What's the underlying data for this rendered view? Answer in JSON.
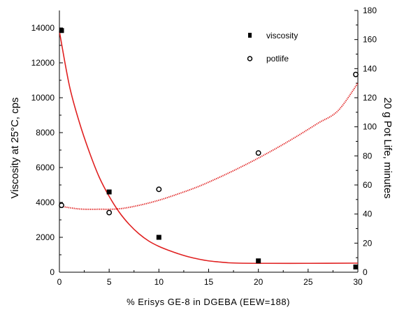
{
  "chart_data": {
    "type": "scatter",
    "xlabel": "% Erisys GE-8 in DGEBA (EEW=188)",
    "ylabel_left": "Viscosity at 25°C, cps",
    "ylabel_right": "20 g Pot Life, minutes",
    "xlim": [
      0,
      30
    ],
    "ylim_left": [
      0,
      15000
    ],
    "ylim_right": [
      0,
      180
    ],
    "x_ticks": [
      "0",
      "5",
      "10",
      "15",
      "20",
      "25",
      "30"
    ],
    "y_left_ticks": [
      "0",
      "2000",
      "4000",
      "6000",
      "8000",
      "10000",
      "12000",
      "14000"
    ],
    "y_right_ticks": [
      "0",
      "20",
      "40",
      "60",
      "80",
      "100",
      "120",
      "140",
      "160",
      "180"
    ],
    "legend_position": "top-right",
    "series": [
      {
        "name": "viscosity",
        "axis": "left",
        "marker": "filled-square",
        "points": [
          [
            0,
            13850
          ],
          [
            5,
            4600
          ],
          [
            10,
            2000
          ],
          [
            20,
            650
          ],
          [
            30,
            300
          ]
        ]
      },
      {
        "name": "potlife",
        "axis": "right",
        "marker": "open-circle",
        "points": [
          [
            0,
            46
          ],
          [
            5,
            41
          ],
          [
            10,
            57
          ],
          [
            20,
            82
          ],
          [
            30,
            136
          ]
        ]
      }
    ],
    "fits": [
      {
        "series": "viscosity",
        "axis": "left",
        "style": "solid",
        "color": "#e02020",
        "points": [
          [
            0,
            13800
          ],
          [
            1,
            10700
          ],
          [
            2,
            8600
          ],
          [
            3,
            6900
          ],
          [
            4,
            5450
          ],
          [
            5,
            4350
          ],
          [
            6,
            3450
          ],
          [
            7,
            2750
          ],
          [
            8,
            2200
          ],
          [
            9,
            1780
          ],
          [
            10,
            1480
          ],
          [
            11,
            1250
          ],
          [
            12,
            1050
          ],
          [
            13,
            880
          ],
          [
            14,
            750
          ],
          [
            15,
            650
          ],
          [
            16,
            590
          ],
          [
            17,
            540
          ],
          [
            18,
            520
          ],
          [
            20,
            510
          ],
          [
            25,
            510
          ],
          [
            30,
            520
          ]
        ]
      },
      {
        "series": "potlife",
        "axis": "right",
        "style": "dotted",
        "color": "#e02020",
        "points": [
          [
            0,
            45.5
          ],
          [
            2,
            43.5
          ],
          [
            4,
            43.3
          ],
          [
            6,
            43.6
          ],
          [
            8,
            46
          ],
          [
            10,
            49.5
          ],
          [
            12,
            54
          ],
          [
            14,
            59
          ],
          [
            16,
            65
          ],
          [
            18,
            71.5
          ],
          [
            20,
            78.5
          ],
          [
            22,
            86
          ],
          [
            24,
            94
          ],
          [
            26,
            102.5
          ],
          [
            28,
            111
          ],
          [
            30,
            130
          ]
        ]
      }
    ]
  }
}
